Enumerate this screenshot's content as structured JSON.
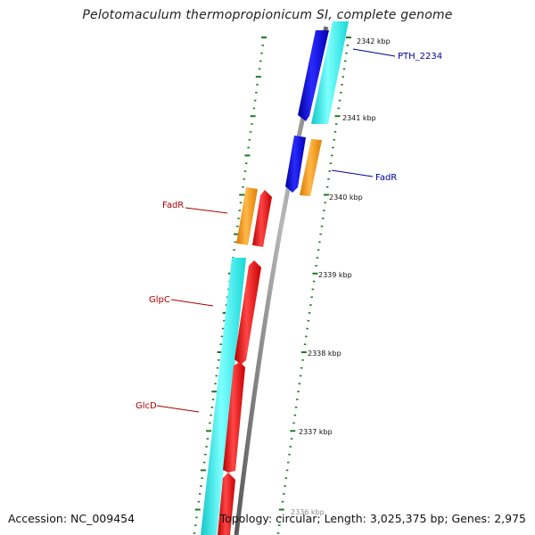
{
  "title": "Pelotomaculum thermopropionicum SI, complete genome",
  "footer": {
    "accession": "Accession: NC_009454",
    "topology": "Topology: circular; Length: 3,025,375 bp; Genes: 2,975"
  },
  "colors": {
    "backbone": "#888888",
    "tick": "#1f7a1f",
    "blue_gene": "#1010e0",
    "cyan_gene": "#22f0f0",
    "orange_gene": "#ff9a10",
    "red_gene": "#ee1010",
    "label_blue": "#000099",
    "label_red": "#aa0000"
  },
  "scale_labels": [
    "2342 kbp",
    "2341 kbp",
    "2340 kbp",
    "2339 kbp",
    "2338 kbp",
    "2337 kbp"
  ],
  "gene_labels": [
    {
      "text": "PTH_2234",
      "color": "blue"
    },
    {
      "text": "FadR",
      "color": "blue"
    },
    {
      "text": "FadR",
      "color": "red"
    },
    {
      "text": "GlpC",
      "color": "red"
    },
    {
      "text": "GlcD",
      "color": "red"
    }
  ]
}
